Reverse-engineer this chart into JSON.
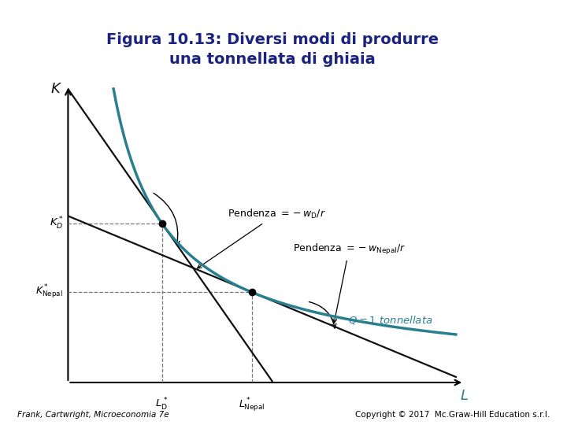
{
  "title": "Figura 10.13: Diversi modi di produrre\nuna tonnellata di ghiaia",
  "title_fontsize": 14,
  "title_color": "#1a237e",
  "curve_color": "#2a7f8f",
  "line_color": "#111111",
  "dashed_color": "#777777",
  "xlabel": "L",
  "ylabel": "K",
  "xlabel_color": "#2a7f8f",
  "ylabel_color": "#111111",
  "footer_left": "Frank, Cartwright, Microeconomia 7e",
  "footer_right": "Copyright © 2017  Mc.Graw-Hill Education s.r.l.",
  "xlim": [
    0,
    10
  ],
  "ylim": [
    0,
    10
  ],
  "point_D": [
    2.3,
    5.2
  ],
  "point_Nepal": [
    4.5,
    2.95
  ],
  "background": "#ffffff",
  "pendenza1_x": 3.9,
  "pendenza1_y": 5.5,
  "pendenza2_x": 5.6,
  "pendenza2_y": 4.4
}
